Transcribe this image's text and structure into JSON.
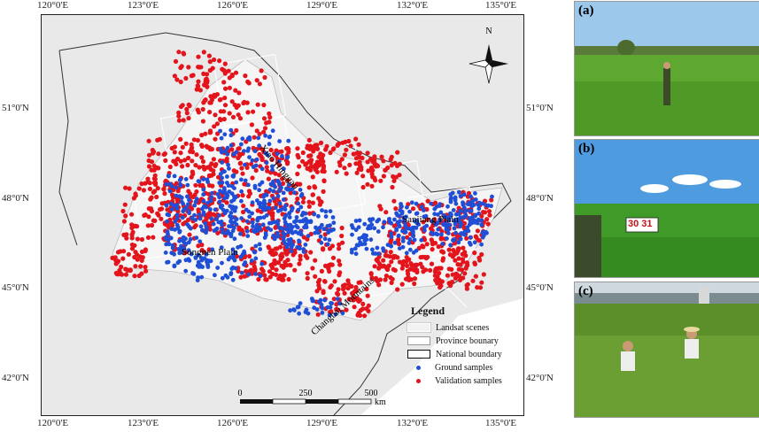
{
  "map": {
    "top_ticks": [
      "120°0'E",
      "123°0'E",
      "126°0'E",
      "129°0'E",
      "132°0'E",
      "135°0'E"
    ],
    "bottom_ticks": [
      "120°0'E",
      "123°0'E",
      "126°0'E",
      "129°0'E",
      "132°0'E",
      "135°0'E"
    ],
    "left_ticks": [
      "51°0'N",
      "48°0'N",
      "45°0'N",
      "42°0'N"
    ],
    "right_ticks": [
      "51°0'N",
      "48°0'N",
      "45°0'N",
      "42°0'N"
    ],
    "labels": {
      "songnen": "Songnen Plain",
      "sanjiang": "Sanjiang Plain",
      "changbai": "Changbai Mountains",
      "xiao_hinggan": "Xiao Hinggan"
    },
    "north_arrow": "N",
    "scale_bar": {
      "values": [
        "0",
        "250",
        "500"
      ],
      "unit": "km"
    },
    "legend": {
      "title": "Legend",
      "items": [
        {
          "label": "Landsat scenes",
          "kind": "landsat"
        },
        {
          "label": "Province bounary",
          "kind": "province"
        },
        {
          "label": "National boundary",
          "kind": "national"
        },
        {
          "label": "Ground samples",
          "kind": "ground",
          "color": "#1f4fd6"
        },
        {
          "label": "Validation samples",
          "kind": "validation",
          "color": "#e3141c"
        }
      ]
    }
  },
  "photos": [
    {
      "label": "(a)",
      "scene": "paddy field with person"
    },
    {
      "label": "(b)",
      "scene": "paddy field with measuring board"
    },
    {
      "label": "(c)",
      "scene": "people sampling in field"
    }
  ],
  "photo_b_board": "30 31"
}
